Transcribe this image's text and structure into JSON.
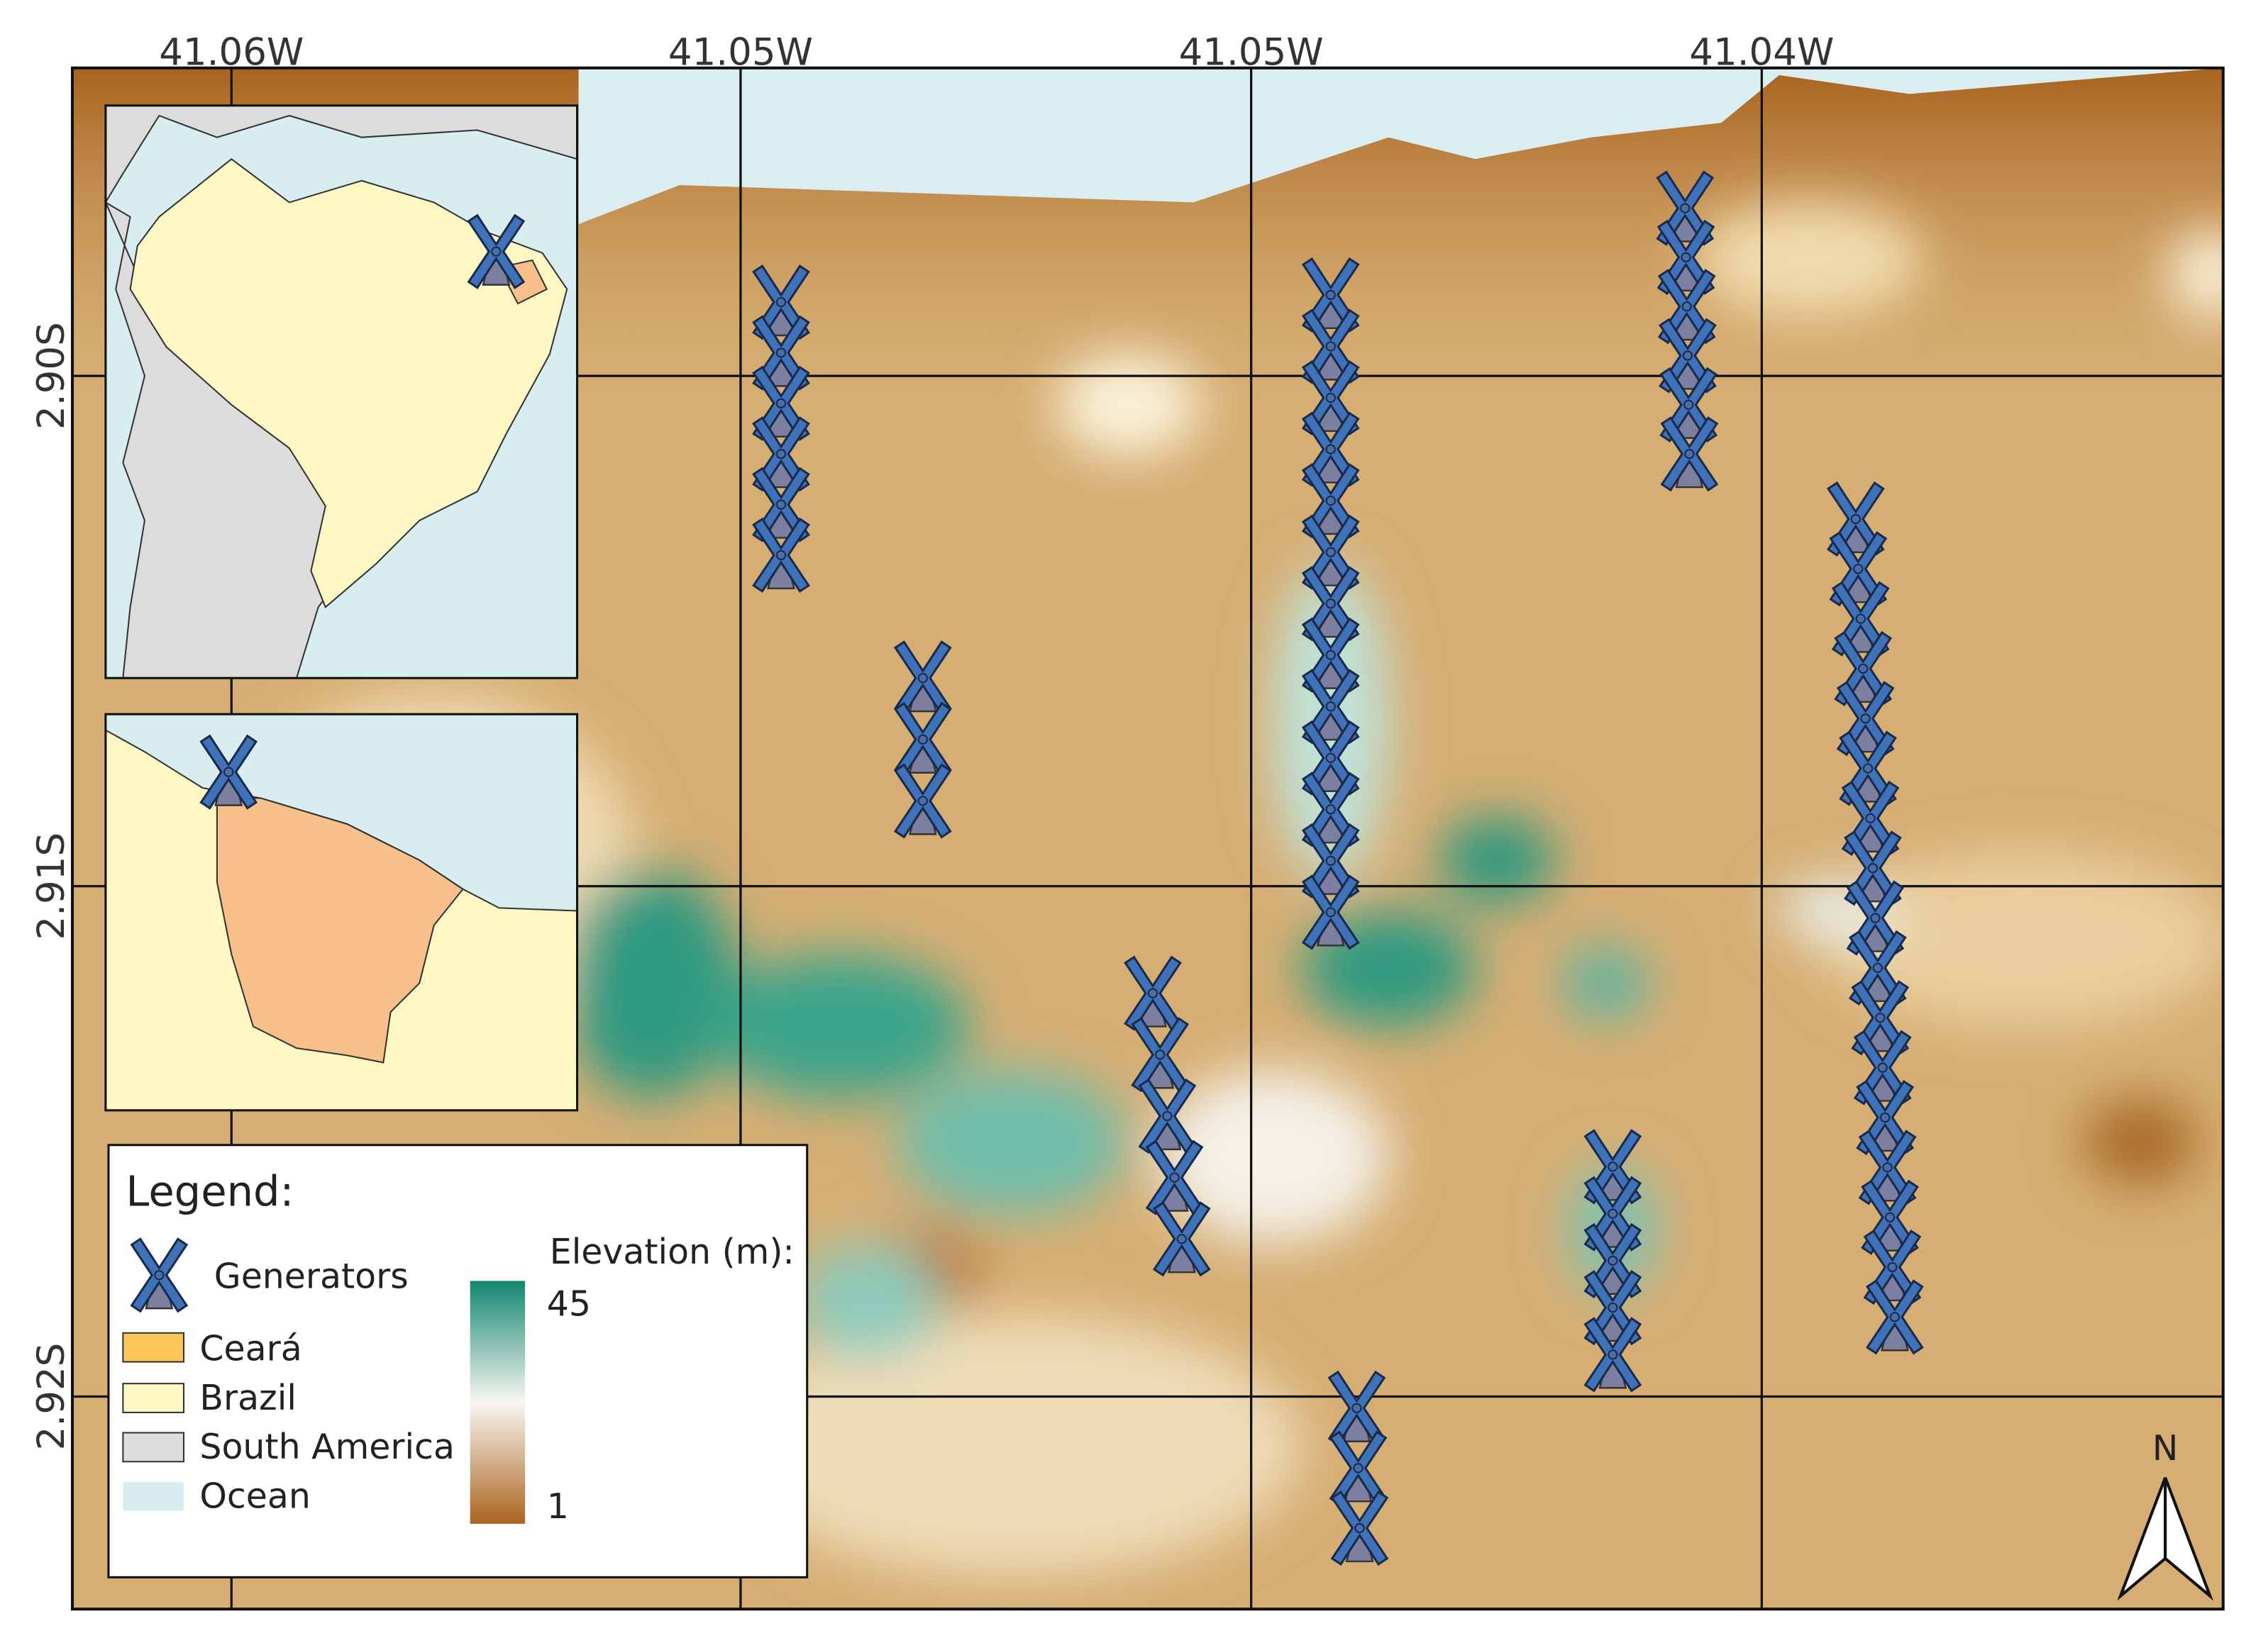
{
  "map": {
    "x_labels": [
      "41.06W",
      "41.05W",
      "41.05W",
      "41.04W"
    ],
    "y_labels": [
      "2.90S",
      "2.91S",
      "2.92S"
    ],
    "legend": {
      "title": "Legend:",
      "items": [
        "Generators",
        "Ceará",
        "Brazil",
        "South America",
        "Ocean"
      ],
      "elevation": {
        "title": "Elevation (m):",
        "max": 45,
        "min": 1
      }
    },
    "north": "N"
  }
}
